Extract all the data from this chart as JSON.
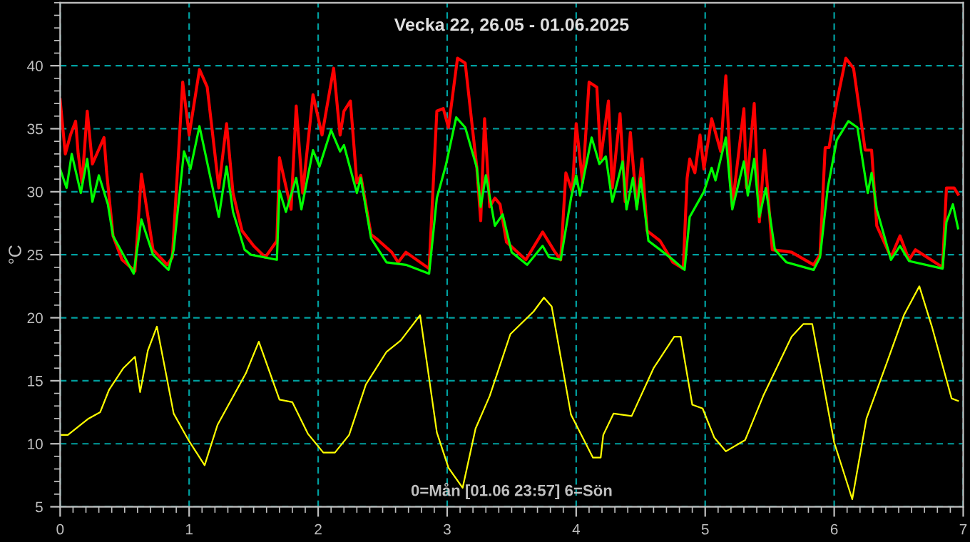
{
  "chart_data": {
    "type": "line",
    "title": "Vecka 22, 26.05 - 01.06.2025",
    "ylabel": "°C",
    "annotations": [
      "0=Mån [01.06 23:57] 6=Sön"
    ],
    "xlim": [
      0,
      7
    ],
    "xticks": [
      0,
      1,
      2,
      3,
      4,
      5,
      6,
      7
    ],
    "ylim": [
      5,
      45
    ],
    "yticks": [
      5,
      10,
      15,
      20,
      25,
      30,
      35,
      40
    ],
    "grid": true,
    "legend": false,
    "series": [
      {
        "color": "#ff0000",
        "x": [
          0,
          0.04,
          0.08,
          0.12,
          0.14,
          0.17,
          0.21,
          0.25,
          0.34,
          0.36,
          0.41,
          0.48,
          0.58,
          0.63,
          0.72,
          0.83,
          0.87,
          0.95,
          1.0,
          1.08,
          1.14,
          1.23,
          1.29,
          1.34,
          1.41,
          1.5,
          1.59,
          1.68,
          1.7,
          1.79,
          1.83,
          1.88,
          1.96,
          2.03,
          2.12,
          2.17,
          2.2,
          2.25,
          2.3,
          2.33,
          2.41,
          2.46,
          2.57,
          2.62,
          2.68,
          2.86,
          2.92,
          2.97,
          3.01,
          3.08,
          3.14,
          3.23,
          3.26,
          3.29,
          3.33,
          3.37,
          3.41,
          3.46,
          3.61,
          3.74,
          3.83,
          3.88,
          3.92,
          3.97,
          4.0,
          4.05,
          4.1,
          4.16,
          4.19,
          4.25,
          4.28,
          4.34,
          4.38,
          4.42,
          4.47,
          4.51,
          4.55,
          4.65,
          4.75,
          4.83,
          4.86,
          4.88,
          4.92,
          4.96,
          4.99,
          5.05,
          5.12,
          5.16,
          5.21,
          5.3,
          5.32,
          5.38,
          5.42,
          5.46,
          5.52,
          5.67,
          5.84,
          5.89,
          5.93,
          5.96,
          6.02,
          6.09,
          6.15,
          6.24,
          6.29,
          6.33,
          6.44,
          6.51,
          6.58,
          6.63,
          6.84,
          6.87,
          6.93,
          6.96
        ],
        "values": [
          37.3,
          33.0,
          34.5,
          35.6,
          33.0,
          30.7,
          36.4,
          32.2,
          34.3,
          31.6,
          26.5,
          24.6,
          23.7,
          31.4,
          25.4,
          24.2,
          24.8,
          38.7,
          34.5,
          39.7,
          38.3,
          30.3,
          35.4,
          29.9,
          26.9,
          25.7,
          24.8,
          26.1,
          32.7,
          28.6,
          36.8,
          29.9,
          37.7,
          34.5,
          39.8,
          34.5,
          36.4,
          37.2,
          30.7,
          31.3,
          26.6,
          26.2,
          25.2,
          24.4,
          25.2,
          23.9,
          36.4,
          36.6,
          35.1,
          40.6,
          40.2,
          31.9,
          27.7,
          35.8,
          28.8,
          29.5,
          29.0,
          26.0,
          24.6,
          26.8,
          25.3,
          24.6,
          31.5,
          30.0,
          35.4,
          30.7,
          38.7,
          38.3,
          32.6,
          37.2,
          30.3,
          36.2,
          29.2,
          34.7,
          28.8,
          32.6,
          26.9,
          26.1,
          24.4,
          23.9,
          31.1,
          32.6,
          31.5,
          34.5,
          31.8,
          35.8,
          33.2,
          39.2,
          28.8,
          36.6,
          30.3,
          37.0,
          27.6,
          33.3,
          25.4,
          25.2,
          24.2,
          25.0,
          33.5,
          33.5,
          37.1,
          40.6,
          39.8,
          33.3,
          33.3,
          27.3,
          24.8,
          26.5,
          24.6,
          25.4,
          24.0,
          30.3,
          30.3,
          29.8
        ]
      },
      {
        "color": "#00ff00",
        "x": [
          0,
          0.05,
          0.09,
          0.16,
          0.21,
          0.25,
          0.3,
          0.37,
          0.41,
          0.57,
          0.63,
          0.72,
          0.84,
          0.88,
          0.96,
          1.01,
          1.08,
          1.23,
          1.29,
          1.34,
          1.43,
          1.48,
          1.68,
          1.7,
          1.75,
          1.83,
          1.87,
          1.96,
          2.01,
          2.1,
          2.17,
          2.2,
          2.3,
          2.33,
          2.41,
          2.53,
          2.68,
          2.86,
          2.92,
          2.99,
          3.07,
          3.14,
          3.23,
          3.26,
          3.3,
          3.37,
          3.43,
          3.5,
          3.62,
          3.74,
          3.79,
          3.88,
          3.96,
          4.0,
          4.03,
          4.12,
          4.18,
          4.23,
          4.28,
          4.36,
          4.39,
          4.44,
          4.47,
          4.5,
          4.56,
          4.65,
          4.75,
          4.84,
          4.88,
          4.99,
          5.05,
          5.08,
          5.16,
          5.21,
          5.3,
          5.33,
          5.38,
          5.42,
          5.47,
          5.54,
          5.63,
          5.84,
          5.89,
          5.95,
          6.02,
          6.11,
          6.18,
          6.26,
          6.29,
          6.33,
          6.44,
          6.51,
          6.58,
          6.84,
          6.87,
          6.92,
          6.96
        ],
        "values": [
          31.8,
          30.3,
          33.0,
          29.9,
          32.6,
          29.2,
          31.3,
          29.0,
          26.5,
          23.5,
          27.8,
          25.0,
          23.8,
          25.4,
          33.2,
          31.8,
          35.2,
          28.0,
          32.0,
          28.4,
          25.4,
          25.0,
          24.6,
          30.1,
          28.4,
          31.1,
          28.6,
          33.3,
          32.0,
          34.9,
          33.2,
          33.7,
          29.9,
          31.1,
          26.3,
          24.4,
          24.2,
          23.5,
          29.5,
          32.1,
          35.9,
          35.1,
          31.9,
          28.8,
          31.3,
          27.3,
          28.2,
          25.2,
          24.2,
          25.7,
          24.8,
          24.6,
          29.5,
          31.3,
          29.7,
          34.3,
          32.2,
          32.8,
          29.2,
          32.4,
          28.6,
          31.1,
          28.6,
          31.1,
          26.1,
          25.4,
          24.6,
          23.8,
          28.0,
          30.0,
          31.9,
          30.9,
          34.3,
          28.6,
          32.4,
          29.7,
          32.6,
          28.0,
          30.3,
          25.4,
          24.4,
          23.8,
          24.8,
          30.3,
          34.1,
          35.6,
          35.1,
          29.9,
          31.5,
          28.6,
          24.6,
          25.7,
          24.5,
          23.9,
          27.6,
          29.0,
          27.1
        ]
      },
      {
        "color": "#ffff00",
        "x": [
          0,
          0.06,
          0.22,
          0.31,
          0.38,
          0.49,
          0.58,
          0.62,
          0.68,
          0.75,
          0.88,
          1.0,
          1.12,
          1.22,
          1.44,
          1.54,
          1.7,
          1.8,
          1.92,
          2.04,
          2.13,
          2.24,
          2.37,
          2.53,
          2.64,
          2.79,
          2.92,
          3.01,
          3.12,
          3.22,
          3.33,
          3.49,
          3.67,
          3.75,
          3.81,
          3.96,
          4.13,
          4.19,
          4.21,
          4.29,
          4.43,
          4.6,
          4.76,
          4.81,
          4.9,
          4.98,
          5.07,
          5.16,
          5.31,
          5.45,
          5.67,
          5.76,
          5.83,
          6.0,
          6.14,
          6.25,
          6.4,
          6.54,
          6.66,
          6.76,
          6.91,
          6.96
        ],
        "values": [
          10.7,
          10.7,
          12.0,
          12.5,
          14.3,
          16.0,
          16.9,
          14.1,
          17.4,
          19.3,
          12.4,
          10.2,
          8.3,
          11.5,
          15.6,
          18.1,
          13.5,
          13.3,
          10.8,
          9.3,
          9.3,
          10.7,
          14.7,
          17.3,
          18.2,
          20.2,
          10.9,
          8.1,
          6.5,
          11.2,
          13.8,
          18.7,
          20.5,
          21.6,
          20.9,
          12.3,
          8.9,
          8.9,
          10.7,
          12.4,
          12.2,
          16.0,
          18.5,
          18.5,
          13.1,
          12.8,
          10.5,
          9.4,
          10.3,
          13.8,
          18.5,
          19.5,
          19.5,
          10.1,
          5.6,
          12.0,
          16.2,
          20.2,
          22.5,
          19.2,
          13.6,
          13.4
        ]
      }
    ]
  }
}
